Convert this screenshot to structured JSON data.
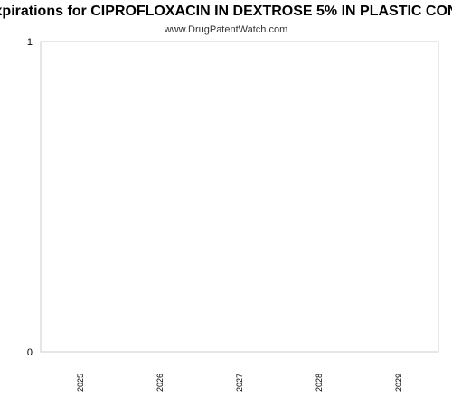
{
  "chart_data": {
    "type": "bar",
    "title": "xpirations for CIPROFLOXACIN IN DEXTROSE 5% IN PLASTIC CON",
    "subtitle": "www.DrugPatentWatch.com",
    "categories": [
      "2025",
      "2026",
      "2027",
      "2028",
      "2029"
    ],
    "values": [
      0,
      0,
      0,
      0,
      0
    ],
    "xlabel": "",
    "ylabel": "",
    "ylim": [
      0,
      1
    ],
    "yticks": [
      "0",
      "1"
    ],
    "grid": false,
    "legend": "none"
  },
  "colors": {
    "axis": "#cccccc",
    "text": "#000000",
    "subtitle": "#333333",
    "bar": "#4a7ebb"
  }
}
